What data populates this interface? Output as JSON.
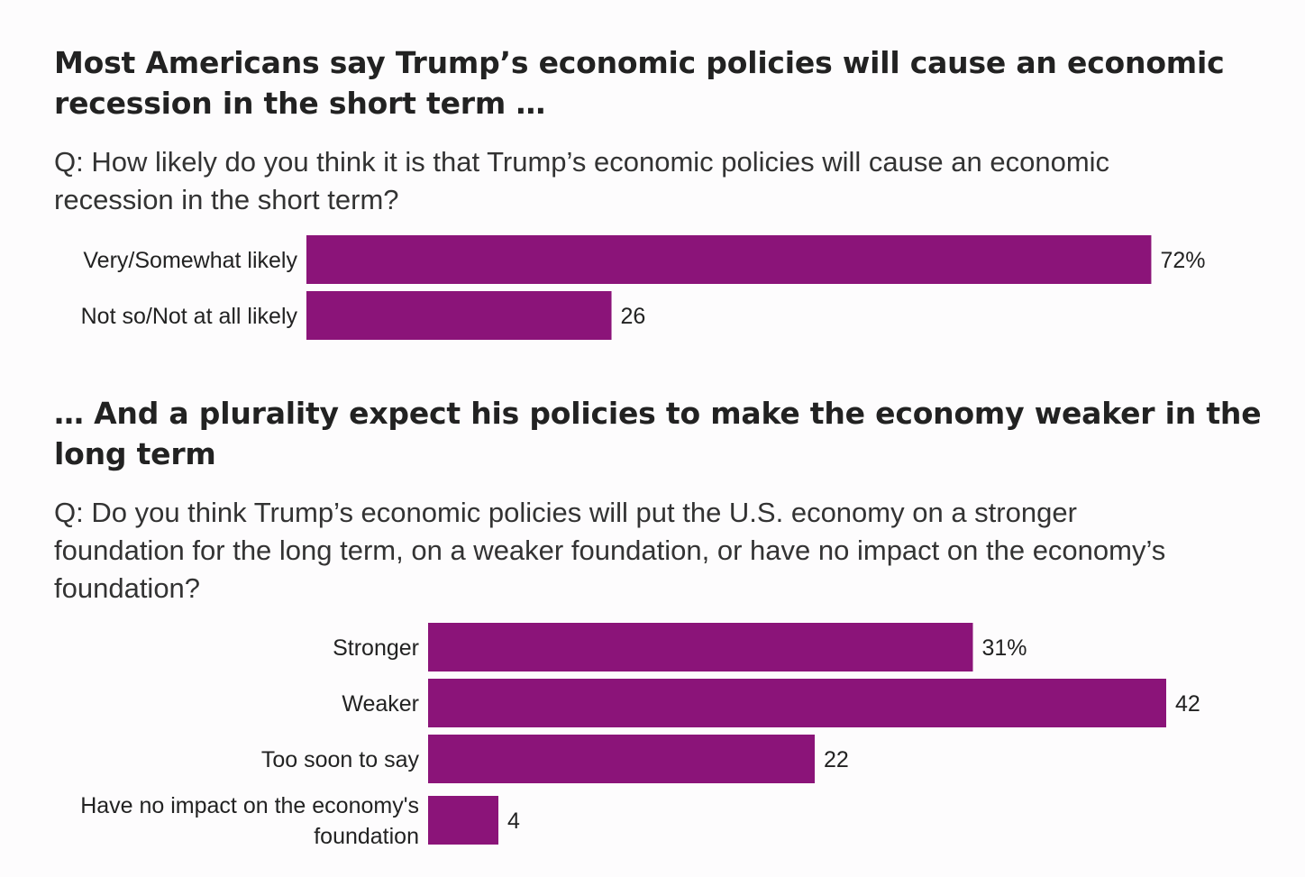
{
  "headline_1": "Most Americans say Trump’s economic policies will cause an economic recession in the short term …",
  "question_1": "Q: How likely do you think it is that Trump’s economic policies will cause an economic recession in the short term?",
  "headline_2": "… And a plurality expect his policies to make the economy weaker in the long term",
  "question_2": "Q: Do you think Trump’s economic policies will put the U.S. economy on a stronger foundation for the long term, on a weaker foundation, or have no impact on the economy’s foundation?",
  "bar_color": "#8b1479",
  "chart_data": [
    {
      "type": "bar",
      "orientation": "horizontal",
      "categories": [
        "Very/Somewhat likely",
        "Not so/Not at all likely"
      ],
      "values": [
        72,
        26
      ],
      "value_labels": [
        "72%",
        "26"
      ]
    },
    {
      "type": "bar",
      "orientation": "horizontal",
      "categories": [
        "Stronger",
        "Weaker",
        "Too soon to say",
        "Have no impact on the economy's foundation"
      ],
      "category_lines": [
        [
          "Stronger"
        ],
        [
          "Weaker"
        ],
        [
          "Too soon to say"
        ],
        [
          "Have no impact on the economy's",
          "foundation"
        ]
      ],
      "values": [
        31,
        42,
        22,
        4
      ],
      "value_labels": [
        "31%",
        "42",
        "22",
        "4"
      ]
    }
  ]
}
